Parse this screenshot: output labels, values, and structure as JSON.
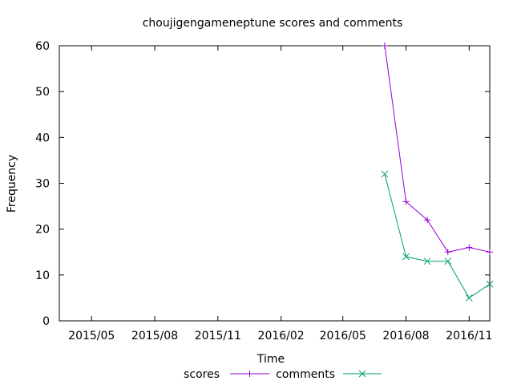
{
  "chart_data": {
    "type": "line",
    "title": "choujigengameneptune scores and comments",
    "xlabel": "Time",
    "ylabel": "Frequency",
    "xlim": [
      "2015-03-15",
      "2016-12-01"
    ],
    "ylim": [
      0,
      60
    ],
    "y_ticks": [
      0,
      10,
      20,
      30,
      40,
      50,
      60
    ],
    "x_ticks": [
      {
        "date": "2015-05-01",
        "label": "2015/05"
      },
      {
        "date": "2015-08-01",
        "label": "2015/08"
      },
      {
        "date": "2015-11-01",
        "label": "2015/11"
      },
      {
        "date": "2016-02-01",
        "label": "2016/02"
      },
      {
        "date": "2016-05-01",
        "label": "2016/05"
      },
      {
        "date": "2016-08-01",
        "label": "2016/08"
      },
      {
        "date": "2016-11-01",
        "label": "2016/11"
      }
    ],
    "grid": false,
    "legend_position": "bottom",
    "series": [
      {
        "name": "scores",
        "color": "#9400d3",
        "marker": "plus",
        "points": [
          {
            "x": "2016-07-01",
            "y": 60
          },
          {
            "x": "2016-08-01",
            "y": 26
          },
          {
            "x": "2016-09-01",
            "y": 22
          },
          {
            "x": "2016-10-01",
            "y": 15
          },
          {
            "x": "2016-11-01",
            "y": 16
          },
          {
            "x": "2016-12-01",
            "y": 15
          }
        ]
      },
      {
        "name": "comments",
        "color": "#009e73",
        "marker": "cross",
        "points": [
          {
            "x": "2016-07-01",
            "y": 32
          },
          {
            "x": "2016-08-01",
            "y": 14
          },
          {
            "x": "2016-09-01",
            "y": 13
          },
          {
            "x": "2016-10-01",
            "y": 13
          },
          {
            "x": "2016-11-01",
            "y": 5
          },
          {
            "x": "2016-12-01",
            "y": 8
          }
        ]
      }
    ]
  }
}
